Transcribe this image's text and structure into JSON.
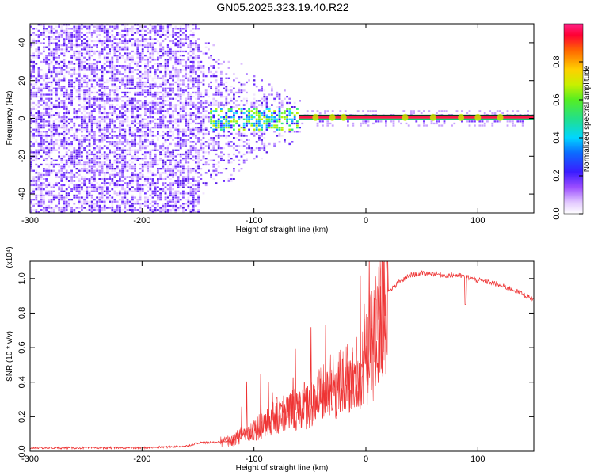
{
  "title": "GN05.2025.323.19.40.R22",
  "chart_data": [
    {
      "type": "heatmap",
      "name": "spectrogram",
      "xlabel": "Height of straight line (km)",
      "ylabel": "Frequency (Hz)",
      "xlim": [
        -300,
        150
      ],
      "ylim": [
        -50,
        50
      ],
      "xticks": [
        -300,
        -200,
        -100,
        0,
        100
      ],
      "xtick_labels": [
        "-300",
        "-200",
        "-100",
        "0",
        "100"
      ],
      "yticks": [
        -40,
        -20,
        0,
        20,
        40
      ],
      "ytick_labels": [
        "-40",
        "-20",
        "0",
        "20",
        "40"
      ],
      "colorbar": {
        "label": "Normalized spectral amplitude",
        "range": [
          0,
          1
        ],
        "ticks": [
          0.0,
          0.2,
          0.4,
          0.6,
          0.8
        ],
        "tick_labels": [
          "0.0",
          "0.2",
          "0.4",
          "0.6",
          "0.8"
        ]
      },
      "signal_line_freq_hz": 0.5,
      "noise_extent_km": [
        -300,
        -150
      ],
      "scatter_extent_km": [
        -150,
        -60
      ]
    },
    {
      "type": "line",
      "name": "snr",
      "xlabel": "Height of straight line (km)",
      "ylabel": "SNR (10 * v/v)",
      "scale_note": "(x10⁴)",
      "xlim": [
        -300,
        150
      ],
      "ylim": [
        0,
        1.1
      ],
      "xticks": [
        -300,
        -200,
        -100,
        0,
        100
      ],
      "xtick_labels": [
        "-300",
        "-200",
        "-100",
        "0",
        "100"
      ],
      "yticks": [
        0,
        0.2,
        0.4,
        0.6,
        0.8,
        1.0
      ],
      "ytick_labels": [
        "0.0",
        "0.2",
        "0.4",
        "0.6",
        "0.8",
        "1.0"
      ],
      "color": "#ee3333",
      "series": [
        {
          "name": "SNR",
          "x": [
            -300,
            -250,
            -200,
            -160,
            -150,
            -140,
            -120,
            -110,
            -100,
            -90,
            -80,
            -70,
            -60,
            -50,
            -40,
            -30,
            -20,
            -10,
            0,
            5,
            10,
            15,
            20,
            30,
            40,
            50,
            60,
            70,
            80,
            90,
            95,
            100,
            110,
            120,
            130,
            140,
            150
          ],
          "y": [
            0.02,
            0.02,
            0.02,
            0.03,
            0.05,
            0.05,
            0.06,
            0.1,
            0.13,
            0.17,
            0.2,
            0.23,
            0.26,
            0.28,
            0.32,
            0.37,
            0.4,
            0.45,
            0.52,
            0.6,
            0.72,
            0.85,
            0.92,
            0.98,
            1.02,
            1.03,
            1.03,
            1.02,
            1.02,
            1.01,
            1.0,
            0.99,
            0.98,
            0.96,
            0.94,
            0.91,
            0.88
          ]
        }
      ],
      "spikes_max_y": [
        0.12,
        0.25,
        0.45,
        0.6,
        0.75,
        0.9,
        1.08,
        1.12
      ]
    }
  ]
}
